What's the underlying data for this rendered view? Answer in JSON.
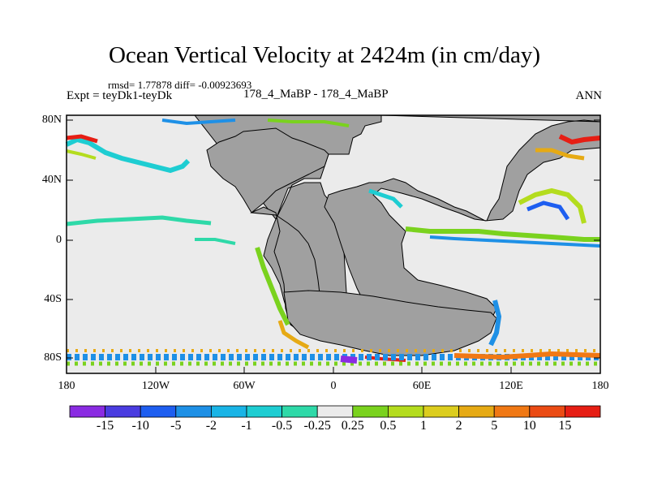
{
  "title": "Ocean Vertical Velocity at 2424m (in cm/day)",
  "stats_text": "rmsd= 1.77878 diff= -0.00923693",
  "experiment_text": "Expt = teyDk1-teyDk",
  "case_text": "178_4_MaBP - 178_4_MaBP",
  "season": "ANN",
  "map": {
    "lat_ticks": [
      "80N",
      "40N",
      "0",
      "40S",
      "80S"
    ],
    "lon_ticks": [
      "180",
      "120W",
      "60W",
      "0",
      "60E",
      "120E",
      "180"
    ],
    "land_color": "#a0a0a0",
    "neutral_color": "#ebebeb"
  },
  "colorbar": {
    "labels": [
      "-15",
      "-10",
      "-5",
      "-2",
      "-1",
      "-0.5",
      "-0.25",
      "0.25",
      "0.5",
      "1",
      "2",
      "5",
      "10",
      "15"
    ],
    "colors": [
      "#8a2be2",
      "#4a3ce0",
      "#1e5ef0",
      "#1e90e6",
      "#19b4e6",
      "#1ecdd2",
      "#2ed9a8",
      "#ebebeb",
      "#7ad21e",
      "#b4dc1e",
      "#dccd1e",
      "#e6aa14",
      "#f07814",
      "#eb4b14",
      "#e61e14"
    ]
  }
}
